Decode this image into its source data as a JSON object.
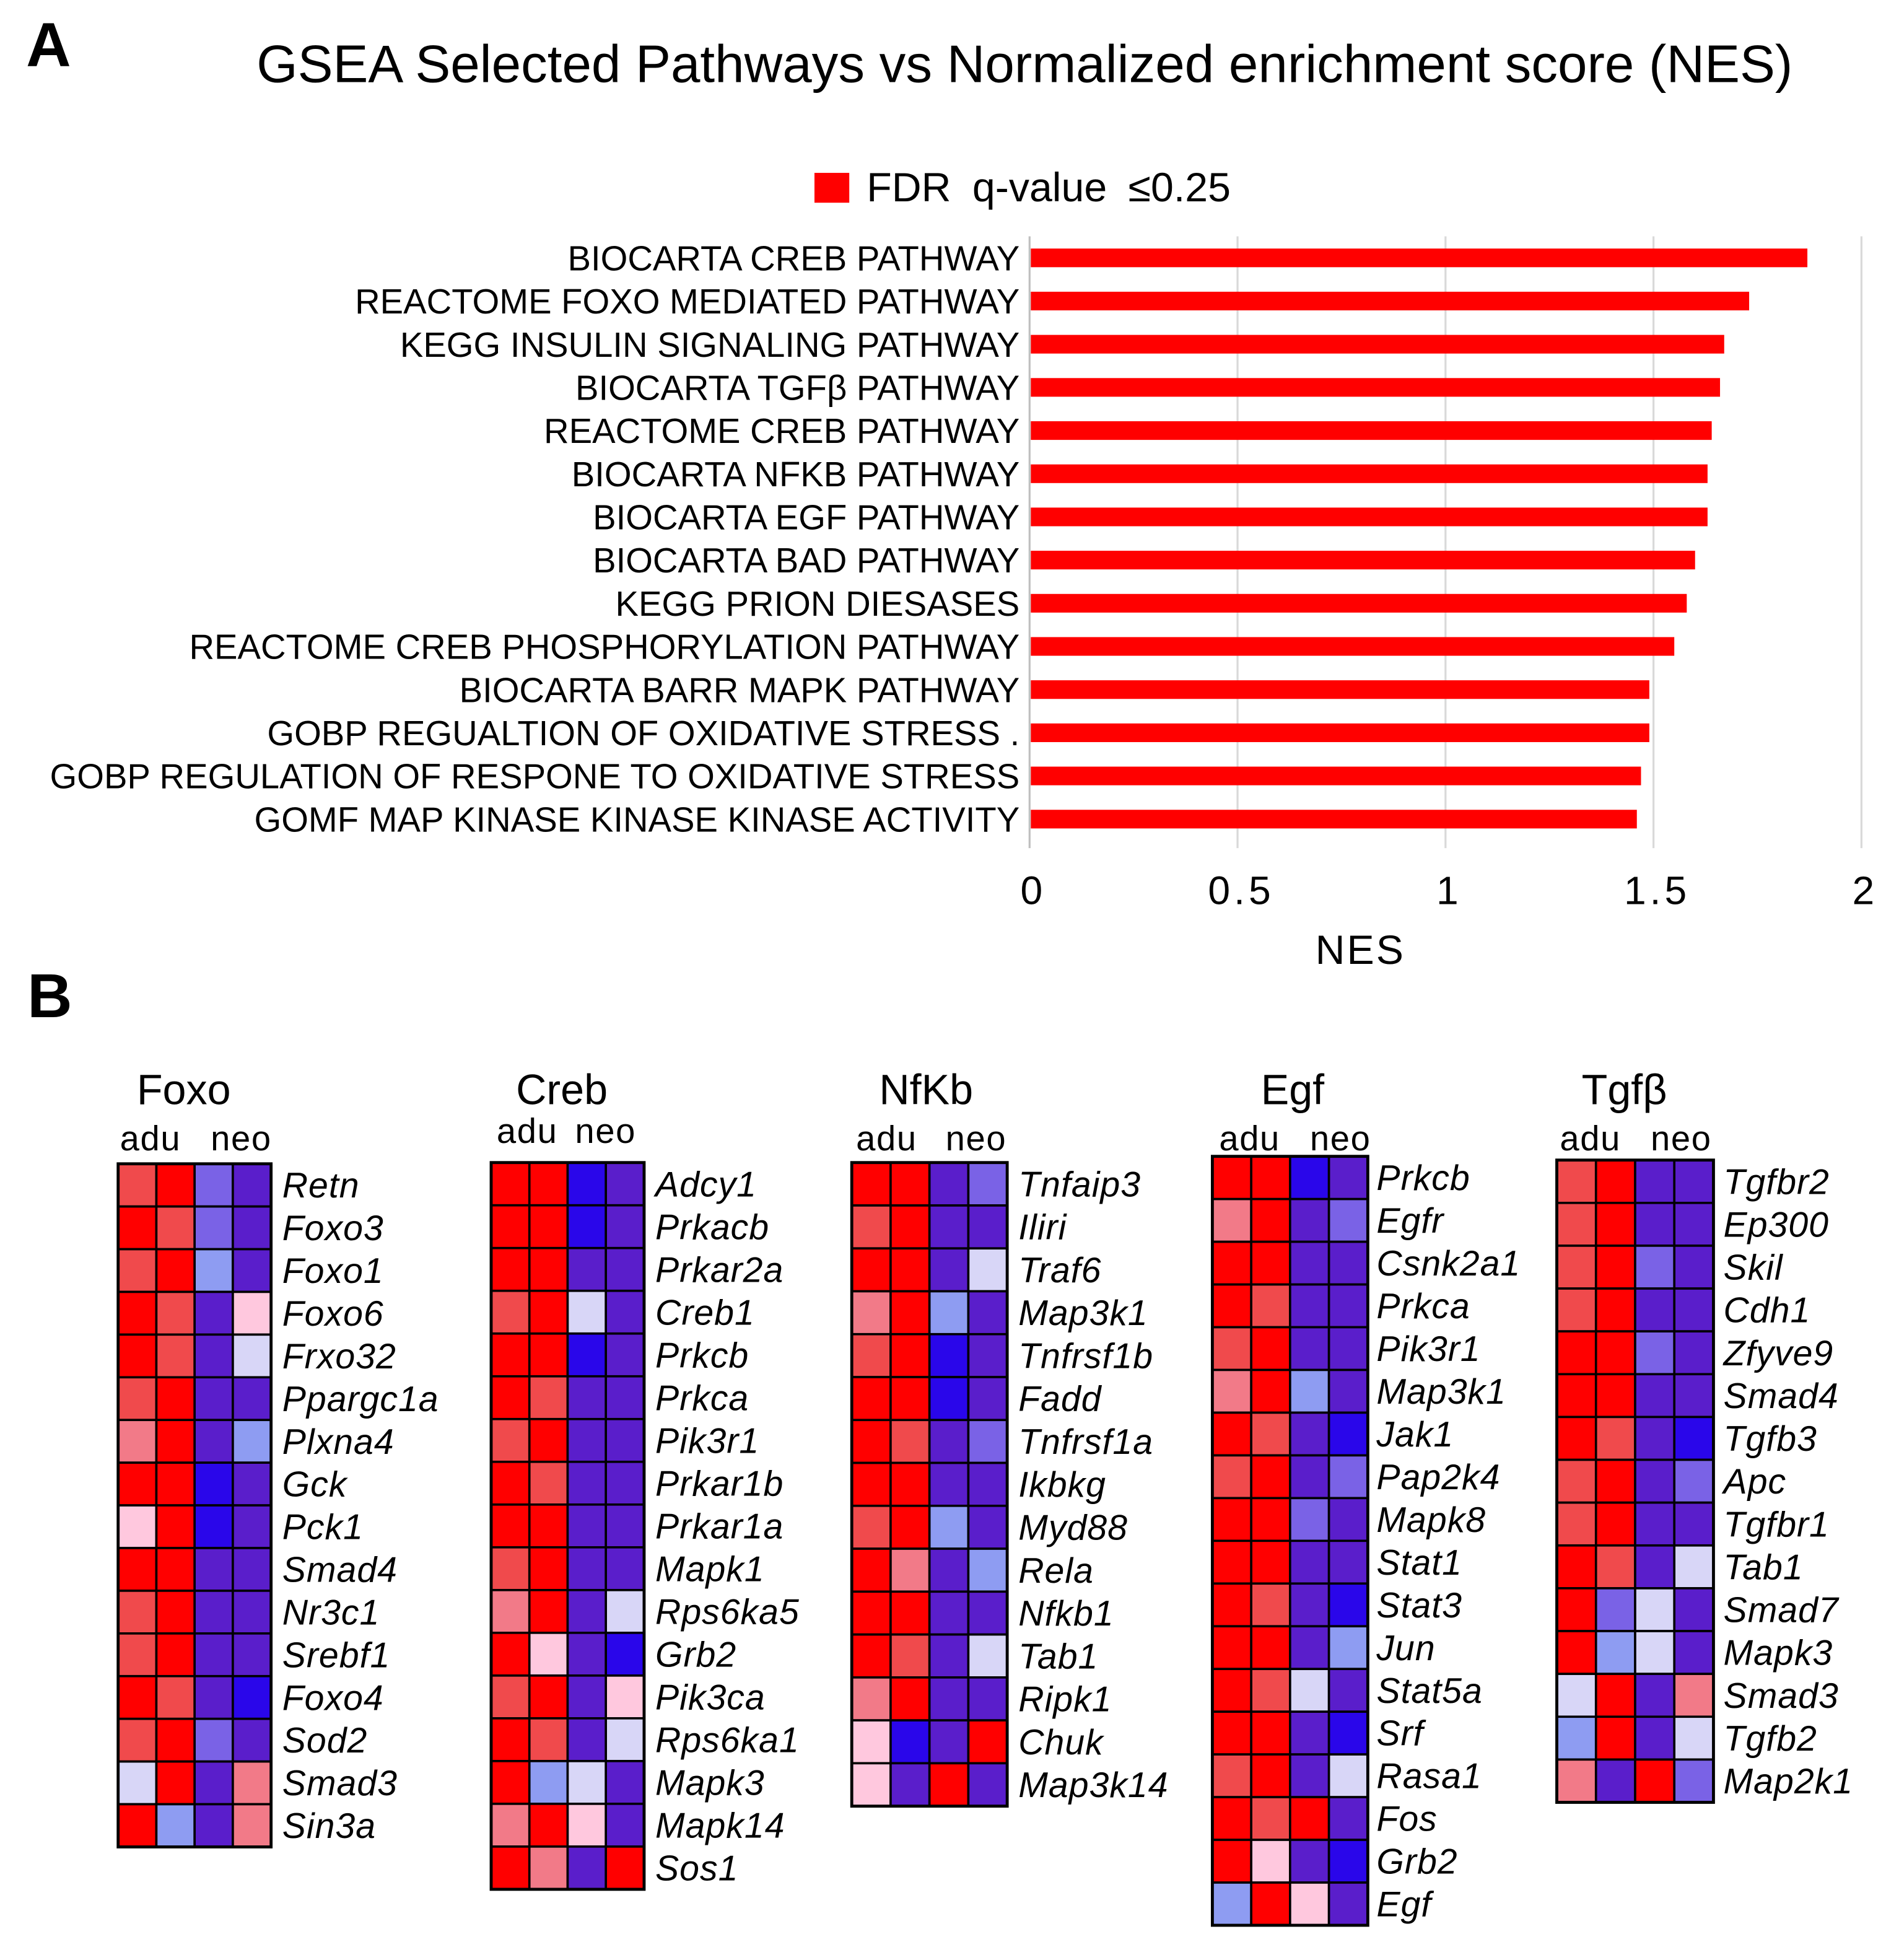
{
  "panel_a": {
    "label": "A"
  },
  "panel_b": {
    "label": "B"
  },
  "chart_data": [
    {
      "type": "bar",
      "title": "GSEA Selected Pathways vs Normalized enrichment score (NES)",
      "legend": {
        "label": "FDR q-value ≤0.25",
        "color": "#ff0000",
        "position": "top"
      },
      "categories": [
        "BIOCARTA CREB PATHWAY",
        "REACTOME FOXO MEDIATED PATHWAY",
        "KEGG INSULIN SIGNALING PATHWAY",
        "BIOCARTA TGFβ PATHWAY",
        "REACTOME CREB PATHWAY",
        "BIOCARTA NFKB PATHWAY",
        "BIOCARTA EGF PATHWAY",
        "BIOCARTA BAD PATHWAY",
        "KEGG PRION DIESASES",
        "REACTOME CREB PHOSPHORYLATION PATHWAY",
        "BIOCARTA BARR MAPK PATHWAY",
        "GOBP REGUALTION OF OXIDATIVE STRESS .",
        "GOBP REGULATION OF RESPONE TO OXIDATIVE STRESS",
        "GOMF MAP KINASE KINASE KINASE ACTIVITY"
      ],
      "values": [
        1.87,
        1.73,
        1.67,
        1.66,
        1.64,
        1.63,
        1.63,
        1.6,
        1.58,
        1.55,
        1.49,
        1.49,
        1.47,
        1.46
      ],
      "xlabel": "NES",
      "ylabel": "",
      "xlim": [
        0,
        2
      ],
      "xticks": [
        0,
        0.5,
        1,
        1.5,
        2
      ],
      "xtick_labels": [
        "0",
        "0.5",
        "1",
        "1.5",
        "2"
      ],
      "grid": true
    },
    {
      "type": "heatmap",
      "colorscale": [
        [
          1.0,
          "#ff0000"
        ],
        [
          0.8,
          "#f04a4c"
        ],
        [
          0.55,
          "#f27a88"
        ],
        [
          0.25,
          "#ffc8de"
        ],
        [
          -0.15,
          "#d8d6f7"
        ],
        [
          -0.45,
          "#8e9cf2"
        ],
        [
          -0.6,
          "#7a62e6"
        ],
        [
          -0.8,
          "#5a1ecb"
        ],
        [
          -1.0,
          "#2a06ea"
        ]
      ],
      "panels": [
        {
          "title": "Foxo",
          "column_groups": [
            "adu",
            "neo"
          ],
          "rows": [
            "Retn",
            "Foxo3",
            "Foxo1",
            "Foxo6",
            "Frxo32",
            "Ppargc1a",
            "Plxna4",
            "Gck",
            "Pck1",
            "Smad4",
            "Nr3c1",
            "Srebf1",
            "Foxo4",
            "Sod2",
            "Smad3",
            "Sin3a"
          ],
          "values": [
            [
              0.8,
              1,
              -0.6,
              -0.8
            ],
            [
              1,
              0.8,
              -0.6,
              -0.8
            ],
            [
              0.8,
              1,
              -0.45,
              -0.8
            ],
            [
              1,
              0.8,
              -0.8,
              0.25
            ],
            [
              1,
              0.8,
              -0.8,
              -0.15
            ],
            [
              0.8,
              1,
              -0.8,
              -0.8
            ],
            [
              0.55,
              1,
              -0.8,
              -0.45
            ],
            [
              1,
              1,
              -1,
              -0.8
            ],
            [
              0.25,
              1,
              -1,
              -0.8
            ],
            [
              1,
              1,
              -0.8,
              -0.8
            ],
            [
              0.8,
              1,
              -0.8,
              -0.8
            ],
            [
              0.8,
              1,
              -0.8,
              -0.8
            ],
            [
              1,
              0.8,
              -0.8,
              -1
            ],
            [
              0.8,
              1,
              -0.6,
              -0.8
            ],
            [
              -0.15,
              1,
              -0.8,
              0.55
            ],
            [
              1,
              -0.45,
              -0.8,
              0.55
            ]
          ]
        },
        {
          "title": "Creb",
          "column_groups": [
            "adu",
            "neo"
          ],
          "rows": [
            "Adcy1",
            "Prkacb",
            "Prkar2a",
            "Creb1",
            "Prkcb",
            "Prkca",
            "Pik3r1",
            "Prkar1b",
            "Prkar1a",
            "Mapk1",
            "Rps6ka5",
            "Grb2",
            "Pik3ca",
            "Rps6ka1",
            "Mapk3",
            "Mapk14",
            "Sos1"
          ],
          "values": [
            [
              1,
              1,
              -1,
              -0.8
            ],
            [
              1,
              1,
              -1,
              -0.8
            ],
            [
              1,
              1,
              -0.8,
              -0.8
            ],
            [
              0.8,
              1,
              -0.15,
              -0.8
            ],
            [
              1,
              1,
              -1,
              -0.8
            ],
            [
              1,
              0.8,
              -0.8,
              -0.8
            ],
            [
              0.8,
              1,
              -0.8,
              -0.8
            ],
            [
              1,
              0.8,
              -0.8,
              -0.8
            ],
            [
              1,
              1,
              -0.8,
              -0.8
            ],
            [
              0.8,
              1,
              -0.8,
              -0.8
            ],
            [
              0.55,
              1,
              -0.8,
              -0.15
            ],
            [
              1,
              0.25,
              -0.8,
              -1
            ],
            [
              0.8,
              1,
              -0.8,
              0.25
            ],
            [
              1,
              0.8,
              -0.8,
              -0.15
            ],
            [
              1,
              -0.45,
              -0.15,
              -0.8
            ],
            [
              0.55,
              1,
              0.25,
              -0.8
            ],
            [
              1,
              0.55,
              -0.8,
              1
            ]
          ]
        },
        {
          "title": "NfKb",
          "column_groups": [
            "adu",
            "neo"
          ],
          "rows": [
            "Tnfaip3",
            "Iliri",
            "Traf6",
            "Map3k1",
            "Tnfrsf1b",
            "Fadd",
            "Tnfrsf1a",
            "Ikbkg",
            "Myd88",
            "Rela",
            "Nfkb1",
            "Tab1",
            "Ripk1",
            "Chuk",
            "Map3k14"
          ],
          "values": [
            [
              1,
              1,
              -0.8,
              -0.6
            ],
            [
              0.8,
              1,
              -0.8,
              -0.8
            ],
            [
              1,
              1,
              -0.8,
              -0.15
            ],
            [
              0.55,
              1,
              -0.45,
              -0.8
            ],
            [
              0.8,
              1,
              -1,
              -0.8
            ],
            [
              1,
              1,
              -1,
              -0.8
            ],
            [
              1,
              0.8,
              -0.8,
              -0.6
            ],
            [
              1,
              1,
              -0.8,
              -0.8
            ],
            [
              0.8,
              1,
              -0.45,
              -0.8
            ],
            [
              1,
              0.55,
              -0.8,
              -0.45
            ],
            [
              1,
              1,
              -0.8,
              -0.8
            ],
            [
              1,
              0.8,
              -0.8,
              -0.15
            ],
            [
              0.55,
              1,
              -0.8,
              -0.8
            ],
            [
              0.25,
              -1,
              -0.8,
              1
            ],
            [
              0.25,
              -0.8,
              1,
              -0.8
            ]
          ]
        },
        {
          "title": "Egf",
          "column_groups": [
            "adu",
            "neo"
          ],
          "rows": [
            "Prkcb",
            "Egfr",
            "Csnk2a1",
            "Prkca",
            "Pik3r1",
            "Map3k1",
            "Jak1",
            "Pap2k4",
            "Mapk8",
            "Stat1",
            "Stat3",
            "Jun",
            "Stat5a",
            "Srf",
            "Rasa1",
            "Fos",
            "Grb2",
            "Egf"
          ],
          "values": [
            [
              1,
              1,
              -1,
              -0.8
            ],
            [
              0.55,
              1,
              -0.8,
              -0.6
            ],
            [
              1,
              1,
              -0.8,
              -0.8
            ],
            [
              1,
              0.8,
              -0.8,
              -0.8
            ],
            [
              0.8,
              1,
              -0.8,
              -0.8
            ],
            [
              0.55,
              1,
              -0.45,
              -0.8
            ],
            [
              1,
              0.8,
              -0.8,
              -1
            ],
            [
              0.8,
              1,
              -0.8,
              -0.6
            ],
            [
              1,
              1,
              -0.6,
              -0.8
            ],
            [
              1,
              1,
              -0.8,
              -0.8
            ],
            [
              1,
              0.8,
              -0.8,
              -1
            ],
            [
              1,
              1,
              -0.8,
              -0.45
            ],
            [
              1,
              0.8,
              -0.15,
              -0.8
            ],
            [
              1,
              1,
              -0.8,
              -1
            ],
            [
              0.8,
              1,
              -0.8,
              -0.15
            ],
            [
              1,
              0.8,
              1,
              -0.8
            ],
            [
              1,
              0.25,
              -0.8,
              -1
            ],
            [
              -0.45,
              1,
              0.25,
              -0.8
            ]
          ]
        },
        {
          "title": "Tgfβ",
          "column_groups": [
            "adu",
            "neo"
          ],
          "rows": [
            "Tgfbr2",
            "Ep300",
            "Skil",
            "Cdh1",
            "Zfyve9",
            "Smad4",
            "Tgfb3",
            "Apc",
            "Tgfbr1",
            "Tab1",
            "Smad7",
            "Mapk3",
            "Smad3",
            "Tgfb2",
            "Map2k1"
          ],
          "values": [
            [
              0.8,
              1,
              -0.8,
              -0.8
            ],
            [
              0.8,
              1,
              -0.8,
              -0.8
            ],
            [
              0.8,
              1,
              -0.6,
              -0.8
            ],
            [
              0.8,
              1,
              -0.8,
              -0.8
            ],
            [
              1,
              1,
              -0.6,
              -0.8
            ],
            [
              1,
              1,
              -0.8,
              -0.8
            ],
            [
              1,
              0.8,
              -0.8,
              -1
            ],
            [
              0.8,
              1,
              -0.8,
              -0.6
            ],
            [
              0.8,
              1,
              -0.8,
              -0.8
            ],
            [
              1,
              0.8,
              -0.8,
              -0.15
            ],
            [
              1,
              -0.6,
              -0.15,
              -0.8
            ],
            [
              1,
              -0.45,
              -0.15,
              -0.8
            ],
            [
              -0.15,
              1,
              -0.8,
              0.55
            ],
            [
              -0.45,
              1,
              -0.8,
              -0.15
            ],
            [
              0.55,
              -0.8,
              1,
              -0.6
            ]
          ]
        }
      ]
    }
  ]
}
